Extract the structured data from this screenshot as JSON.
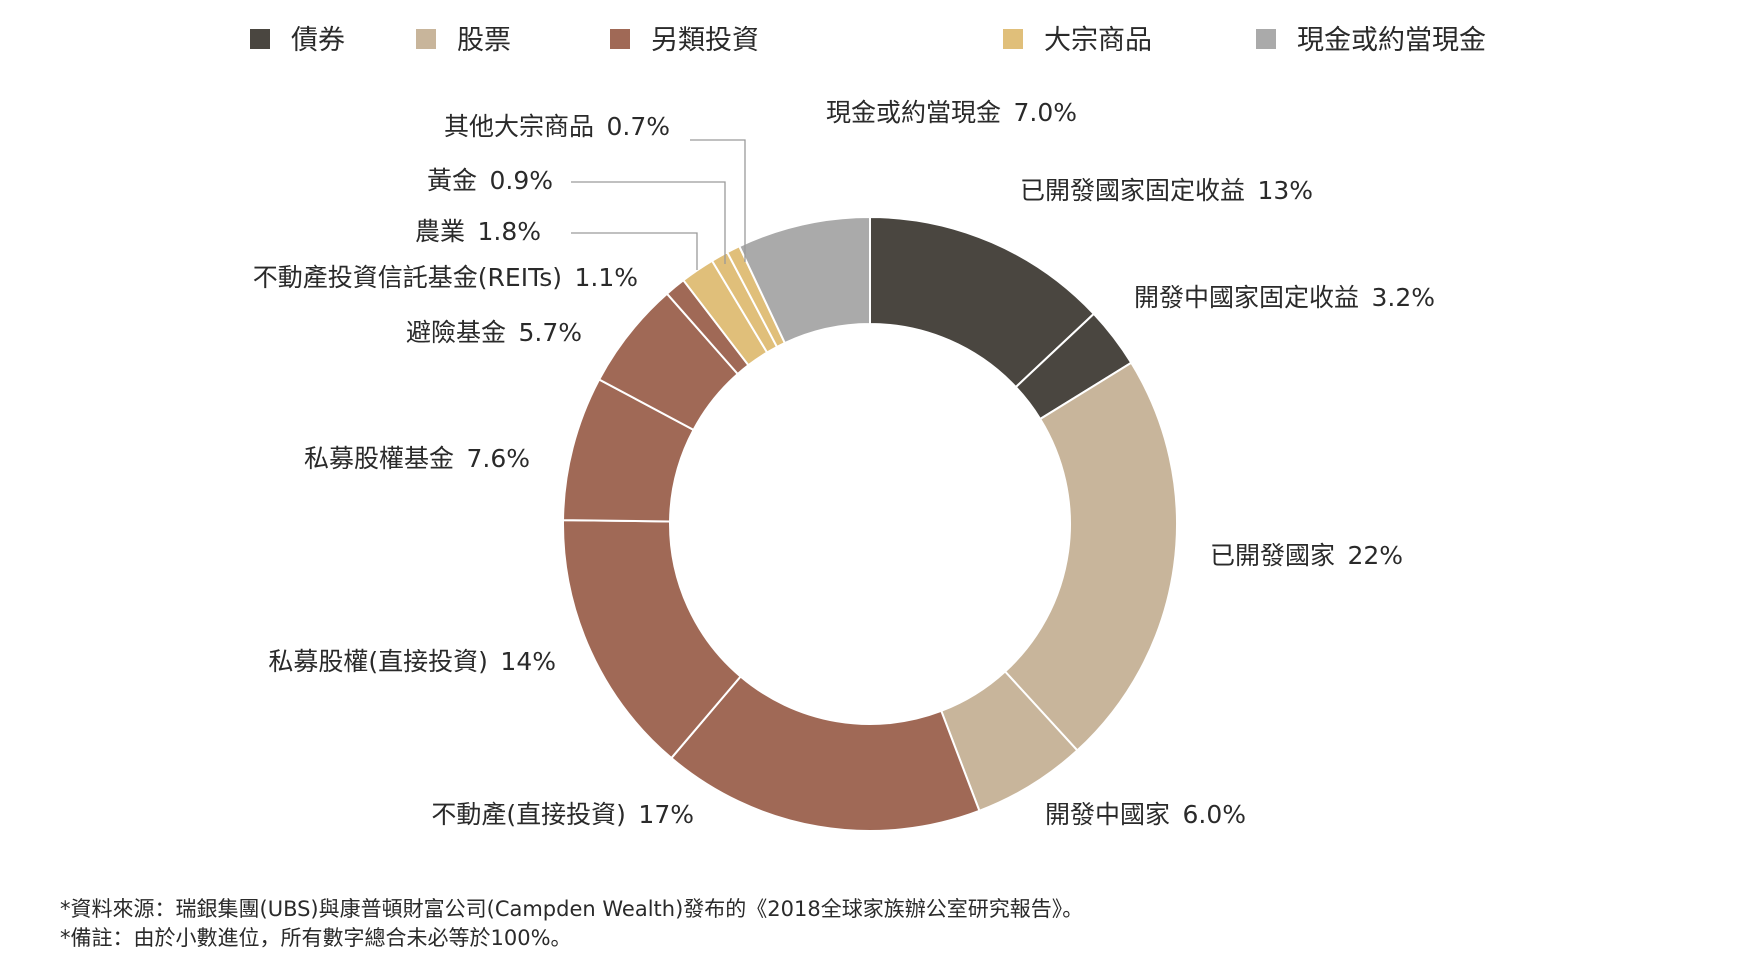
{
  "chart_data": {
    "type": "pie",
    "style": "donut",
    "legend_position": "top",
    "legend": [
      {
        "name": "債券",
        "color": "#4a4640"
      },
      {
        "name": "股票",
        "color": "#c8b59b"
      },
      {
        "name": "另類投資",
        "color": "#a06956"
      },
      {
        "name": "大宗商品",
        "color": "#e0bf7a"
      },
      {
        "name": "現金或約當現金",
        "color": "#aaaaaa"
      }
    ],
    "slices": [
      {
        "label": "已開發國家固定收益",
        "value": 13,
        "value_text": "13%",
        "group": "債券"
      },
      {
        "label": "開發中國家固定收益",
        "value": 3.2,
        "value_text": "3.2%",
        "group": "債券"
      },
      {
        "label": "已開發國家",
        "value": 22,
        "value_text": "22%",
        "group": "股票"
      },
      {
        "label": "開發中國家",
        "value": 6.0,
        "value_text": "6.0%",
        "group": "股票"
      },
      {
        "label": "不動產(直接投資)",
        "value": 17,
        "value_text": "17%",
        "group": "另類投資"
      },
      {
        "label": "私募股權(直接投資)",
        "value": 14,
        "value_text": "14%",
        "group": "另類投資"
      },
      {
        "label": "私募股權基金",
        "value": 7.6,
        "value_text": "7.6%",
        "group": "另類投資"
      },
      {
        "label": "避險基金",
        "value": 5.7,
        "value_text": "5.7%",
        "group": "另類投資"
      },
      {
        "label": "不動產投資信託基金(REITs)",
        "value": 1.1,
        "value_text": "1.1%",
        "group": "另類投資"
      },
      {
        "label": "農業",
        "value": 1.8,
        "value_text": "1.8%",
        "group": "大宗商品"
      },
      {
        "label": "黃金",
        "value": 0.9,
        "value_text": "0.9%",
        "group": "大宗商品"
      },
      {
        "label": "其他大宗商品",
        "value": 0.7,
        "value_text": "0.7%",
        "group": "大宗商品"
      },
      {
        "label": "現金或約當現金",
        "value": 7.0,
        "value_text": "7.0%",
        "group": "現金或約當現金"
      }
    ]
  },
  "notes": {
    "source": "*資料來源：瑞銀集團(UBS)與康普頓財富公司(Campden Wealth)發布的《2018全球家族辦公室研究報告》。",
    "remark": "*備註：由於小數進位，所有數字總合未必等於100%。"
  }
}
